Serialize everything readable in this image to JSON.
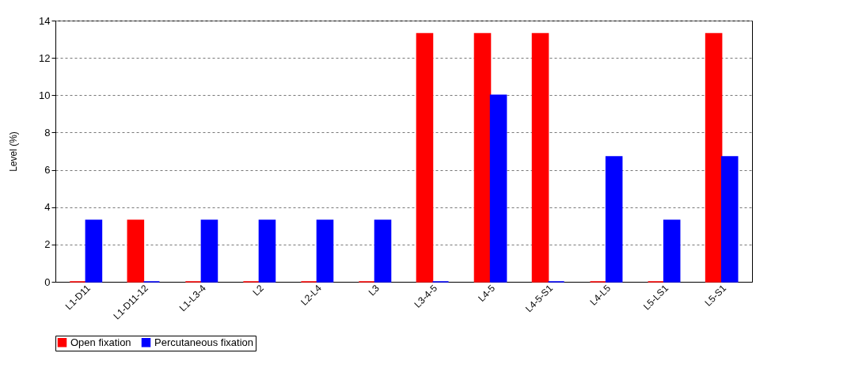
{
  "chart_data": {
    "type": "bar",
    "ylabel": "Level (%)",
    "categories": [
      "L1-D11",
      "L1-D11-12",
      "L1-L3-4",
      "L2",
      "L2-L4",
      "L3",
      "L3-4-5",
      "L4-5",
      "L4-5-S1",
      "L4-L5",
      "L5-LS1",
      "L5-S1"
    ],
    "series": [
      {
        "name": "Open fixation",
        "color": "#ff0000",
        "values": [
          0,
          3.3,
          0,
          0,
          0,
          0,
          13.3,
          13.3,
          13.3,
          0,
          0,
          13.3
        ]
      },
      {
        "name": "Percutaneous fixation",
        "color": "#0000ff",
        "values": [
          3.3,
          0,
          3.3,
          3.3,
          3.3,
          3.3,
          0,
          10,
          0,
          6.7,
          3.3,
          6.7
        ]
      }
    ],
    "ylim": [
      0,
      14
    ],
    "yticks": [
      0,
      2,
      4,
      6,
      8,
      10,
      12,
      14
    ],
    "grid": "y",
    "legend": "bottom"
  }
}
